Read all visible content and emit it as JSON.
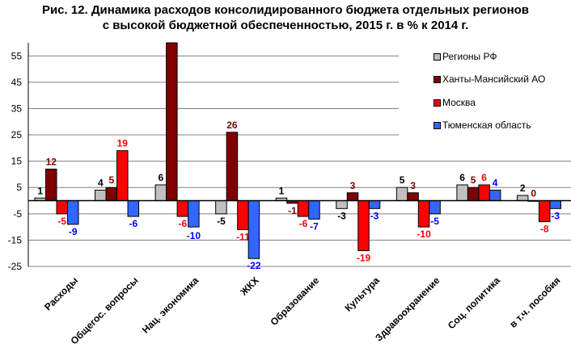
{
  "chart_data": {
    "type": "bar",
    "title_line1": "Рис. 12. Динамика расходов консолидированного бюджета отдельных регионов",
    "title_line2": "с высокой бюджетной обеспеченностью, 2015 г. в % к 2014 г.",
    "categories": [
      "Расходы",
      "Общегос. вопросы",
      "Нац. экономика",
      "ЖКХ",
      "Образование",
      "Культура",
      "Здравоохранение",
      "Соц. политика",
      "в т.ч. пособия"
    ],
    "series": [
      {
        "name": "Регионы РФ",
        "color": "#c0c0c0",
        "label_color": "#000000",
        "values": [
          1,
          4,
          6,
          -5,
          1,
          -3,
          5,
          6,
          2
        ],
        "labels": [
          "1",
          "4",
          "6",
          "-5",
          "1",
          "-3",
          "5",
          "6",
          "2"
        ]
      },
      {
        "name": "Ханты-Мансийский АО",
        "color": "#800000",
        "label_color": "#800000",
        "values": [
          12,
          5,
          60,
          26,
          -1,
          3,
          3,
          5,
          0
        ],
        "labels": [
          "12",
          "5",
          "",
          "26",
          "-1",
          "3",
          "3",
          "5",
          "0"
        ]
      },
      {
        "name": "Москва",
        "color": "#ff0000",
        "label_color": "#ff0000",
        "values": [
          -5,
          19,
          -6,
          -11,
          -6,
          -19,
          -10,
          6,
          -8
        ],
        "labels": [
          "-5",
          "19",
          "-6",
          "-11",
          "-6",
          "-19",
          "-10",
          "6",
          "-8"
        ]
      },
      {
        "name": "Тюменская область",
        "color": "#3366ff",
        "label_color": "#0000ff",
        "values": [
          -9,
          -6,
          -10,
          -22,
          -7,
          -3,
          -5,
          4,
          -3
        ],
        "labels": [
          "-9",
          "-6",
          "-10",
          "-22",
          "-7",
          "-3",
          "-5",
          "4",
          "-3"
        ]
      }
    ],
    "yticks": [
      55,
      45,
      35,
      25,
      15,
      5,
      -5,
      -15,
      -25
    ],
    "ylim": [
      -25,
      60
    ],
    "grid": true,
    "legend_position": "right",
    "xlabel": "",
    "ylabel": ""
  }
}
